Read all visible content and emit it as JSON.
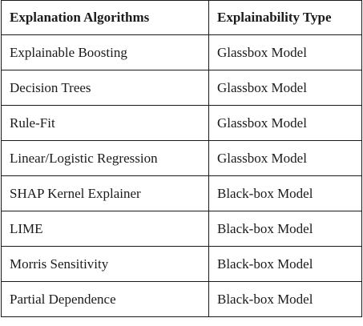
{
  "table": {
    "headers": [
      "Explanation Algorithms",
      "Explainability Type"
    ],
    "rows": [
      [
        "Explainable Boosting",
        "Glassbox Model"
      ],
      [
        "Decision Trees",
        "Glassbox Model"
      ],
      [
        "Rule-Fit",
        "Glassbox Model"
      ],
      [
        "Linear/Logistic Regression",
        "Glassbox Model"
      ],
      [
        "SHAP Kernel Explainer",
        "Black-box Model"
      ],
      [
        "LIME",
        "Black-box Model"
      ],
      [
        "Morris Sensitivity",
        "Black-box Model"
      ],
      [
        "Partial Dependence",
        "Black-box Model"
      ]
    ]
  }
}
